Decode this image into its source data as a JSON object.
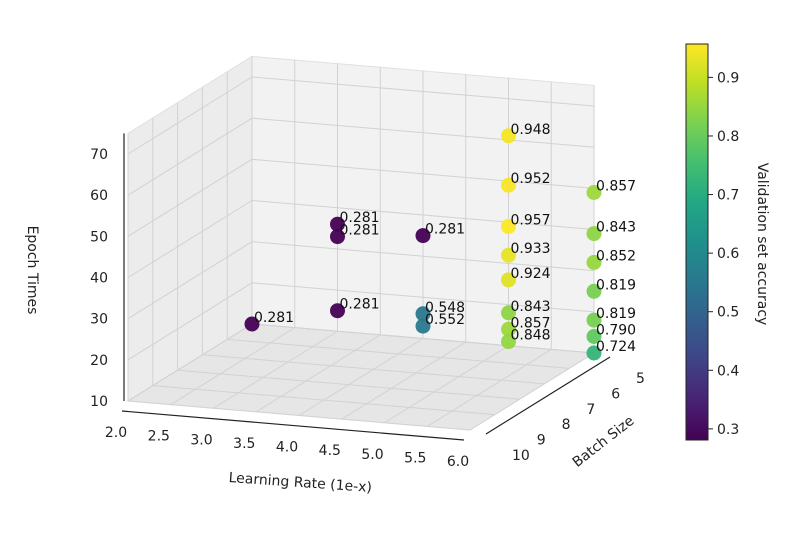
{
  "chart_data": {
    "type": "scatter",
    "title": "",
    "xlabel": "Learning Rate (1e-x)",
    "ylabel": "Batch Size",
    "zlabel": "Epoch Times",
    "colorbar_label": "Validation set accuracy",
    "colormap": "viridis",
    "xlim": [
      2.0,
      6.0
    ],
    "ylim": [
      5,
      10
    ],
    "zlim": [
      10,
      70
    ],
    "clim": [
      0.281,
      0.957
    ],
    "x_ticks": [
      "2.0",
      "2.5",
      "3.0",
      "3.5",
      "4.0",
      "4.5",
      "5.0",
      "5.5",
      "6.0"
    ],
    "y_ticks": [
      "5",
      "6",
      "7",
      "8",
      "9",
      "10"
    ],
    "z_ticks": [
      "10",
      "20",
      "30",
      "40",
      "50",
      "60",
      "70"
    ],
    "colorbar_ticks": [
      "0.3",
      "0.4",
      "0.5",
      "0.6",
      "0.7",
      "0.8",
      "0.9"
    ],
    "grid": true,
    "points": [
      {
        "x": 2.0,
        "y": 5,
        "z": 10,
        "acc": 0.281,
        "label": "0.281"
      },
      {
        "x": 3.0,
        "y": 5,
        "z": 15,
        "acc": 0.281,
        "label": "0.281"
      },
      {
        "x": 3.0,
        "y": 5,
        "z": 33,
        "acc": 0.281,
        "label": "0.281"
      },
      {
        "x": 3.0,
        "y": 5,
        "z": 36,
        "acc": 0.281,
        "label": "0.281"
      },
      {
        "x": 4.0,
        "y": 5,
        "z": 35,
        "acc": 0.281,
        "label": "0.281"
      },
      {
        "x": 4.0,
        "y": 5,
        "z": 16,
        "acc": 0.548,
        "label": "0.548"
      },
      {
        "x": 4.0,
        "y": 5,
        "z": 13,
        "acc": 0.552,
        "label": "0.552"
      },
      {
        "x": 5.0,
        "y": 5,
        "z": 61,
        "acc": 0.948,
        "label": "0.948"
      },
      {
        "x": 5.0,
        "y": 5,
        "z": 49,
        "acc": 0.952,
        "label": "0.952"
      },
      {
        "x": 5.0,
        "y": 5,
        "z": 39,
        "acc": 0.957,
        "label": "0.957"
      },
      {
        "x": 5.0,
        "y": 5,
        "z": 32,
        "acc": 0.933,
        "label": "0.933"
      },
      {
        "x": 5.0,
        "y": 5,
        "z": 26,
        "acc": 0.924,
        "label": "0.924"
      },
      {
        "x": 5.0,
        "y": 5,
        "z": 18,
        "acc": 0.843,
        "label": "0.843"
      },
      {
        "x": 5.0,
        "y": 5,
        "z": 14,
        "acc": 0.857,
        "label": "0.857"
      },
      {
        "x": 5.0,
        "y": 5,
        "z": 11,
        "acc": 0.848,
        "label": "0.848"
      },
      {
        "x": 6.0,
        "y": 5,
        "z": 49,
        "acc": 0.857,
        "label": "0.857"
      },
      {
        "x": 6.0,
        "y": 5,
        "z": 39,
        "acc": 0.843,
        "label": "0.843"
      },
      {
        "x": 6.0,
        "y": 5,
        "z": 32,
        "acc": 0.852,
        "label": "0.852"
      },
      {
        "x": 6.0,
        "y": 5,
        "z": 25,
        "acc": 0.819,
        "label": "0.819"
      },
      {
        "x": 6.0,
        "y": 5,
        "z": 18,
        "acc": 0.819,
        "label": "0.819"
      },
      {
        "x": 6.0,
        "y": 5,
        "z": 14,
        "acc": 0.79,
        "label": "0.790"
      },
      {
        "x": 6.0,
        "y": 5,
        "z": 10,
        "acc": 0.724,
        "label": "0.724"
      }
    ]
  }
}
